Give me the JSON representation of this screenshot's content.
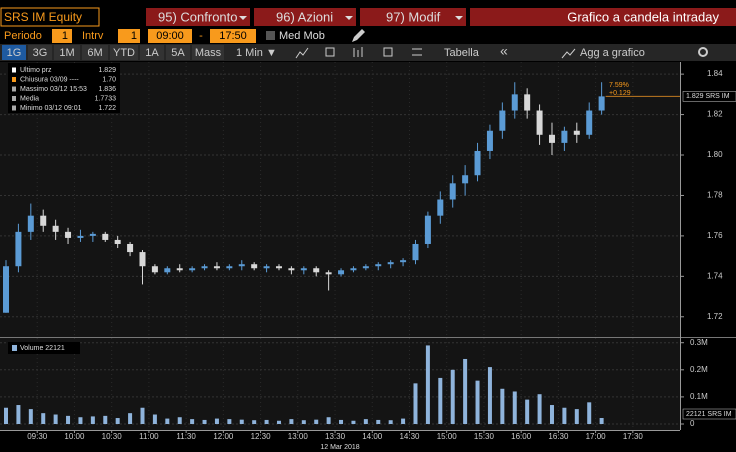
{
  "header": {
    "security": "SRS IM Equity",
    "buttons": [
      "95) Confronto",
      "96) Azioni",
      "97) Modif"
    ],
    "title": "Grafico a candela intraday"
  },
  "settings": {
    "period_label": "Periodo",
    "period": "1",
    "interval_label": "Intrv",
    "interval": "1",
    "start": "09:00",
    "dash": "-",
    "end": "17:50",
    "moving_average": "Med Mob"
  },
  "tabs": {
    "ranges": [
      "1G",
      "3G",
      "1M",
      "6M",
      "YTD",
      "1A",
      "5A",
      "Mass"
    ],
    "selected": 0,
    "frequency": "1 Min ▼",
    "table": "Tabella",
    "collapse": "«",
    "add": "Agg a grafico"
  },
  "legend": {
    "rows": [
      {
        "label": "Ultimo prz",
        "value": "1.829",
        "color": "#ffffff"
      },
      {
        "label": "Chiusura 03/09 ----",
        "value": "1.70",
        "color": "#f89a1c"
      },
      {
        "label": "Massimo 03/12 15:53",
        "value": "1.836",
        "color": "#aaaaaa"
      },
      {
        "label": "Media",
        "value": "1.7733",
        "color": "#aaaaaa"
      },
      {
        "label": "Minimo 03/12 09:01",
        "value": "1.722",
        "color": "#aaaaaa"
      }
    ]
  },
  "price_chart": {
    "type": "candlestick",
    "up_color": "#5b9bd5",
    "down_color": "#d8d8d8",
    "x": [
      "09:00",
      "09:10",
      "09:20",
      "09:30",
      "09:40",
      "09:50",
      "10:00",
      "10:10",
      "10:20",
      "10:30",
      "10:40",
      "10:50",
      "11:00",
      "11:10",
      "11:20",
      "11:30",
      "11:40",
      "11:50",
      "12:00",
      "12:10",
      "12:20",
      "12:30",
      "12:40",
      "12:50",
      "13:00",
      "13:10",
      "13:20",
      "13:30",
      "13:40",
      "13:50",
      "14:00",
      "14:10",
      "14:20",
      "14:30",
      "14:40",
      "14:50",
      "15:00",
      "15:10",
      "15:20",
      "15:30",
      "15:40",
      "15:50",
      "16:00",
      "16:10",
      "16:20",
      "16:30",
      "16:40",
      "16:50",
      "17:00"
    ],
    "open": [
      1.722,
      1.745,
      1.762,
      1.77,
      1.765,
      1.762,
      1.759,
      1.76,
      1.761,
      1.758,
      1.756,
      1.752,
      1.745,
      1.742,
      1.744,
      1.743,
      1.744,
      1.745,
      1.744,
      1.745,
      1.746,
      1.744,
      1.745,
      1.744,
      1.743,
      1.744,
      1.742,
      1.741,
      1.743,
      1.744,
      1.745,
      1.746,
      1.747,
      1.748,
      1.756,
      1.77,
      1.778,
      1.786,
      1.79,
      1.802,
      1.812,
      1.822,
      1.83,
      1.822,
      1.81,
      1.806,
      1.812,
      1.81,
      1.822
    ],
    "high": [
      1.748,
      1.766,
      1.776,
      1.773,
      1.768,
      1.764,
      1.763,
      1.762,
      1.762,
      1.76,
      1.757,
      1.753,
      1.746,
      1.745,
      1.746,
      1.745,
      1.746,
      1.747,
      1.746,
      1.748,
      1.747,
      1.746,
      1.746,
      1.745,
      1.745,
      1.745,
      1.743,
      1.744,
      1.745,
      1.746,
      1.747,
      1.748,
      1.749,
      1.758,
      1.772,
      1.782,
      1.79,
      1.795,
      1.806,
      1.815,
      1.826,
      1.836,
      1.833,
      1.825,
      1.816,
      1.814,
      1.816,
      1.826,
      1.836
    ],
    "low": [
      1.722,
      1.742,
      1.758,
      1.762,
      1.758,
      1.756,
      1.757,
      1.757,
      1.757,
      1.754,
      1.75,
      1.736,
      1.741,
      1.741,
      1.742,
      1.742,
      1.743,
      1.743,
      1.743,
      1.743,
      1.743,
      1.742,
      1.743,
      1.741,
      1.741,
      1.74,
      1.733,
      1.74,
      1.742,
      1.743,
      1.743,
      1.744,
      1.745,
      1.746,
      1.754,
      1.766,
      1.774,
      1.78,
      1.787,
      1.798,
      1.808,
      1.818,
      1.818,
      1.805,
      1.8,
      1.802,
      1.806,
      1.808,
      1.82
    ],
    "close": [
      1.745,
      1.762,
      1.77,
      1.765,
      1.762,
      1.759,
      1.76,
      1.761,
      1.758,
      1.756,
      1.752,
      1.745,
      1.742,
      1.744,
      1.743,
      1.744,
      1.745,
      1.744,
      1.745,
      1.746,
      1.744,
      1.745,
      1.744,
      1.743,
      1.744,
      1.742,
      1.741,
      1.743,
      1.744,
      1.745,
      1.746,
      1.747,
      1.748,
      1.756,
      1.77,
      1.778,
      1.786,
      1.79,
      1.802,
      1.812,
      1.822,
      1.83,
      1.822,
      1.81,
      1.806,
      1.812,
      1.81,
      1.822,
      1.829
    ],
    "xlim": [
      "09:00",
      "18:08"
    ],
    "xticks": [
      "09:30",
      "10:00",
      "10:30",
      "11:00",
      "11:30",
      "12:00",
      "12:30",
      "13:00",
      "13:30",
      "14:00",
      "14:30",
      "15:00",
      "15:30",
      "16:00",
      "16:30",
      "17:00",
      "17:30"
    ],
    "date_label": "12 Mar 2018",
    "ylim": [
      1.71,
      1.846
    ],
    "yticks": [
      1.72,
      1.74,
      1.76,
      1.78,
      {
        "value": 1.8,
        "label": "1.80"
      },
      1.82,
      1.84
    ],
    "change_pct": "7.59%",
    "change_abs": "+0.129",
    "last_label": "1.829 SRS IM"
  },
  "volume_chart": {
    "type": "bar",
    "color": "#8fb4dc",
    "legend": "Volume 22121",
    "values": [
      60000,
      70000,
      55000,
      40000,
      35000,
      30000,
      25000,
      28000,
      30000,
      22000,
      40000,
      60000,
      35000,
      20000,
      25000,
      18000,
      15000,
      20000,
      18000,
      16000,
      14000,
      15000,
      12000,
      18000,
      14000,
      16000,
      25000,
      15000,
      12000,
      18000,
      15000,
      14000,
      20000,
      150000,
      290000,
      170000,
      200000,
      240000,
      160000,
      210000,
      130000,
      120000,
      90000,
      110000,
      70000,
      60000,
      55000,
      80000,
      22121
    ],
    "ylim": [
      0,
      310000
    ],
    "yticks": [
      0,
      {
        "value": 100000,
        "label": "0.1M"
      },
      {
        "value": 200000,
        "label": "0.2M"
      },
      {
        "value": 300000,
        "label": "0.3M"
      }
    ],
    "last_label": "22121 SRS IM"
  }
}
